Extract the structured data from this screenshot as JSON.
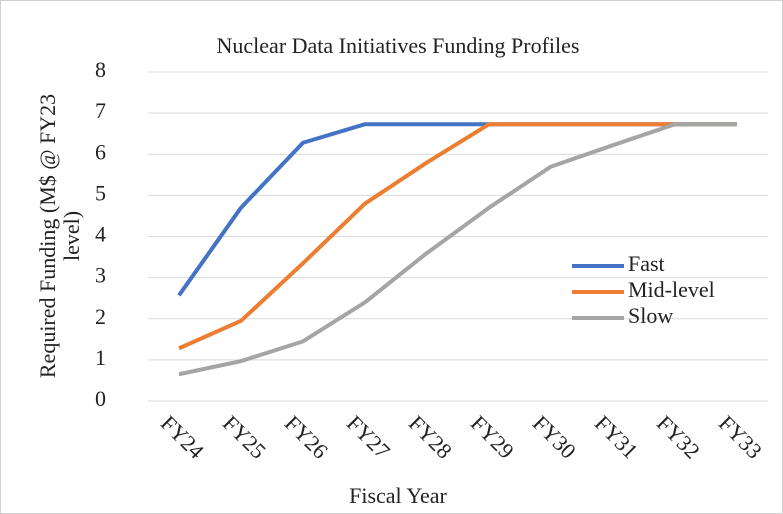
{
  "chart_data": {
    "type": "line",
    "title": "Nuclear Data Initiatives Funding Profiles",
    "x_label": "Fiscal Year",
    "y_label": [
      "Required Funding (M$ @ FY23",
      "level)"
    ],
    "categories": [
      "FY24",
      "FY25",
      "FY26",
      "FY27",
      "FY28",
      "FY29",
      "FY30",
      "FY31",
      "FY32",
      "FY33"
    ],
    "series": [
      {
        "name": "Fast",
        "color": "#4472c4",
        "values": [
          2.57,
          4.7,
          6.28,
          6.73,
          6.73,
          6.73,
          6.73,
          6.73,
          6.73,
          6.73
        ]
      },
      {
        "name": "Mid-level",
        "color": "#ed7d31",
        "values": [
          1.28,
          1.95,
          3.35,
          4.8,
          5.8,
          6.73,
          6.73,
          6.73,
          6.73,
          6.73
        ]
      },
      {
        "name": "Slow",
        "color": "#a5a5a5",
        "values": [
          0.65,
          0.97,
          1.45,
          2.4,
          3.6,
          4.7,
          5.7,
          6.22,
          6.73,
          6.73
        ]
      }
    ],
    "ylim": [
      0,
      8
    ],
    "yticks": [
      0,
      1,
      2,
      3,
      4,
      5,
      6,
      7,
      8
    ],
    "grid": true,
    "legend": "right"
  }
}
